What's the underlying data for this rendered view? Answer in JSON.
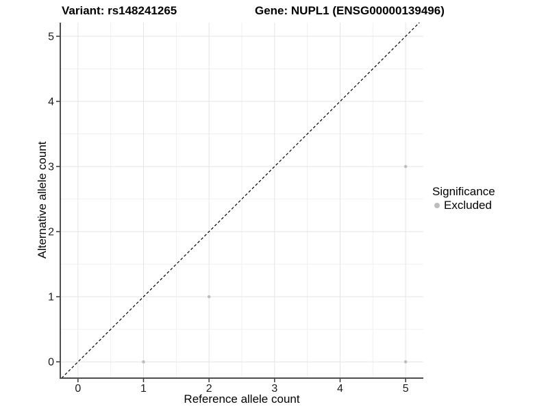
{
  "chart_data": {
    "type": "scatter",
    "title_left": "Variant: rs148241265",
    "title_right": "Gene: NUPL1 (ENSG00000139496)",
    "xlabel": "Reference allele count",
    "ylabel": "Alternative allele count",
    "xlim": [
      -0.27,
      5.27
    ],
    "ylim": [
      -0.25,
      5.21
    ],
    "xticks": [
      0,
      1,
      2,
      3,
      4,
      5
    ],
    "yticks": [
      0,
      1,
      2,
      3,
      4,
      5
    ],
    "grid": {
      "major": true,
      "minor": true,
      "major_color": "#e4e4e4",
      "minor_color": "#f1f1f1"
    },
    "axis_line_color": "#4d4d4d",
    "tick_color": "#333333",
    "background": "#ffffff",
    "reference_line": {
      "kind": "identity",
      "style": "dashed",
      "color": "#000000"
    },
    "series": [
      {
        "name": "Excluded",
        "color": "#bdbdbd",
        "marker": "circle",
        "points": [
          [
            1,
            0
          ],
          [
            2,
            1
          ],
          [
            5,
            0
          ],
          [
            5,
            3
          ]
        ]
      }
    ],
    "legend": {
      "title": "Significance",
      "position": "right",
      "items": [
        {
          "label": "Excluded",
          "color": "#bdbdbd"
        }
      ]
    }
  }
}
